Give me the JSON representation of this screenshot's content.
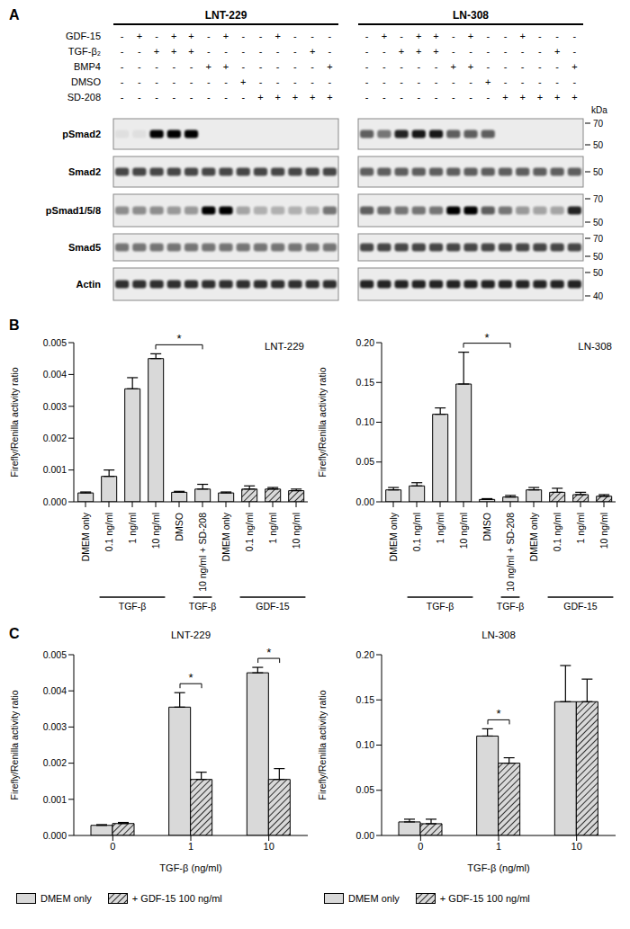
{
  "blot": {
    "panel": "A",
    "kda_label": "kDa",
    "treatments": [
      {
        "name": "GDF-15",
        "lanes": [
          "-",
          "+",
          "-",
          "+",
          "+",
          "-",
          "+",
          "-",
          "-",
          "+",
          "-",
          "-",
          "-"
        ]
      },
      {
        "name": "TGF-β₂",
        "lanes": [
          "-",
          "-",
          "+",
          "+",
          "+",
          "-",
          "-",
          "-",
          "-",
          "-",
          "-",
          "+",
          "-"
        ]
      },
      {
        "name": "BMP4",
        "lanes": [
          "-",
          "-",
          "-",
          "-",
          "-",
          "+",
          "+",
          "-",
          "-",
          "-",
          "-",
          "-",
          "+"
        ]
      },
      {
        "name": "DMSO",
        "lanes": [
          "-",
          "-",
          "-",
          "-",
          "-",
          "-",
          "-",
          "+",
          "-",
          "-",
          "-",
          "-",
          "-"
        ]
      },
      {
        "name": "SD-208",
        "lanes": [
          "-",
          "-",
          "-",
          "-",
          "-",
          "-",
          "-",
          "-",
          "+",
          "+",
          "+",
          "+",
          "+"
        ]
      }
    ],
    "proteins": [
      {
        "name": "pSmad2",
        "kda": [
          70,
          50
        ]
      },
      {
        "name": "Smad2",
        "kda": [
          50
        ]
      },
      {
        "name": "pSmad1/5/8",
        "kda": [
          70,
          50
        ]
      },
      {
        "name": "Smad5",
        "kda": [
          70,
          50
        ]
      },
      {
        "name": "Actin",
        "kda": [
          50,
          40
        ]
      }
    ],
    "cell_lines": [
      {
        "name": "LNT-229",
        "bands": [
          [
            0.05,
            0.05,
            1,
            1,
            1,
            0,
            0,
            0,
            0,
            0,
            0,
            0,
            0
          ],
          [
            0.7,
            0.7,
            0.7,
            0.7,
            0.7,
            0.7,
            0.7,
            0.7,
            0.7,
            0.7,
            0.7,
            0.7,
            0.7
          ],
          [
            0.4,
            0.4,
            0.4,
            0.35,
            0.35,
            1,
            1,
            0.3,
            0.25,
            0.25,
            0.25,
            0.25,
            0.5
          ],
          [
            0.5,
            0.5,
            0.5,
            0.5,
            0.5,
            0.5,
            0.5,
            0.5,
            0.5,
            0.5,
            0.5,
            0.5,
            0.5
          ],
          [
            0.8,
            0.8,
            0.8,
            0.8,
            0.8,
            0.8,
            0.8,
            0.8,
            0.8,
            0.8,
            0.8,
            0.8,
            0.8
          ]
        ]
      },
      {
        "name": "LN-308",
        "bands": [
          [
            0.6,
            0.5,
            0.85,
            0.9,
            0.9,
            0.6,
            0.6,
            0.6,
            0,
            0,
            0,
            0,
            0
          ],
          [
            0.6,
            0.6,
            0.6,
            0.6,
            0.6,
            0.6,
            0.6,
            0.6,
            0.6,
            0.6,
            0.6,
            0.6,
            0.6
          ],
          [
            0.6,
            0.55,
            0.5,
            0.5,
            0.5,
            1,
            1,
            0.6,
            0.5,
            0.35,
            0.3,
            0.3,
            0.85
          ],
          [
            0.7,
            0.7,
            0.7,
            0.7,
            0.7,
            0.7,
            0.7,
            0.7,
            0.7,
            0.7,
            0.7,
            0.7,
            0.7
          ],
          [
            0.85,
            0.85,
            0.85,
            0.85,
            0.85,
            0.85,
            0.85,
            0.85,
            0.85,
            0.85,
            0.85,
            0.85,
            0.85
          ]
        ]
      }
    ]
  },
  "chart_data": [
    {
      "panel": "B",
      "type": "bar",
      "title": "LNT-229",
      "y_label": "Firefly/Renilla activity ratio",
      "categories": [
        "DMEM only",
        "0.1 ng/ml",
        "1 ng/ml",
        "10 ng/ml",
        "DMSO",
        "10 ng/ml + SD-208",
        "DMEM only",
        "0.1 ng/ml",
        "1 ng/ml",
        "10 ng/ml"
      ],
      "values": [
        0.00028,
        0.0008,
        0.00355,
        0.0045,
        0.0003,
        0.0004,
        0.00028,
        0.0004,
        0.0004,
        0.00035
      ],
      "errors": [
        3e-05,
        0.0002,
        0.00035,
        0.00015,
        3e-05,
        0.00015,
        3e-05,
        0.0001,
        5e-05,
        5e-05
      ],
      "color": "#d9d9d9",
      "groups": [
        {
          "label": "TGF-β",
          "from": 1,
          "to": 3,
          "line_style": "solid"
        },
        {
          "label": "TGF-β",
          "from": 5,
          "to": 5,
          "line_style": "solid"
        },
        {
          "label": "GDF-15",
          "from": 7,
          "to": 9,
          "line_style": "hatched"
        }
      ],
      "significance": [
        {
          "from": 3,
          "to": 5,
          "label": "*"
        }
      ],
      "ylim": [
        0,
        0.005
      ],
      "yticks": [
        {
          "value": 0,
          "label": "0.000"
        },
        0.001,
        0.002,
        0.003,
        0.004,
        0.005
      ]
    },
    {
      "type": "bar",
      "title": "LN-308",
      "y_label": "Firefly/Renilla activity ratio",
      "categories": [
        "DMEM only",
        "0.1 ng/ml",
        "1 ng/ml",
        "10 ng/ml",
        "DMSO",
        "10 ng/ml + SD-208",
        "DMEM only",
        "0.1 ng/ml",
        "1 ng/ml",
        "10 ng/ml"
      ],
      "values": [
        0.015,
        0.02,
        0.11,
        0.148,
        0.003,
        0.006,
        0.015,
        0.012,
        0.009,
        0.007
      ],
      "errors": [
        0.003,
        0.004,
        0.008,
        0.04,
        0.001,
        0.002,
        0.003,
        0.005,
        0.003,
        0.002
      ],
      "color": "#d9d9d9",
      "groups": [
        {
          "label": "TGF-β",
          "from": 1,
          "to": 3,
          "line_style": "solid"
        },
        {
          "label": "TGF-β",
          "from": 5,
          "to": 5,
          "line_style": "solid"
        },
        {
          "label": "GDF-15",
          "from": 7,
          "to": 9,
          "line_style": "hatched"
        }
      ],
      "significance": [
        {
          "from": 3,
          "to": 5,
          "label": "*"
        }
      ],
      "ylim": [
        0,
        0.2
      ],
      "yticks": [
        {
          "value": 0,
          "label": "0.00"
        },
        0.05,
        {
          "value": 0.1,
          "label": "0.10"
        },
        0.15,
        {
          "value": 0.2,
          "label": "0.20"
        }
      ]
    },
    {
      "panel": "C",
      "type": "bar",
      "title": "LNT-229",
      "y_label": "Firefly/Renilla activity ratio",
      "x_label": "TGF-β  (ng/ml)",
      "categories": [
        "0",
        "1",
        "10"
      ],
      "legend": "bottom",
      "series": [
        {
          "name": "DMEM only",
          "color": "#d9d9d9",
          "line_style": "solid",
          "values": [
            0.00028,
            0.00355,
            0.0045
          ],
          "errors": [
            2e-05,
            0.0004,
            0.00015
          ]
        },
        {
          "name": "+ GDF-15 100 ng/ml",
          "color": "#d9d9d9",
          "line_style": "hatched",
          "values": [
            0.00033,
            0.00155,
            0.00155
          ],
          "errors": [
            3e-05,
            0.0002,
            0.0003
          ]
        }
      ],
      "significance": [
        {
          "category": 1,
          "label": "*"
        },
        {
          "category": 2,
          "label": "*"
        }
      ],
      "ylim": [
        0,
        0.005
      ],
      "yticks": [
        {
          "value": 0,
          "label": "0.000"
        },
        0.001,
        0.002,
        0.003,
        0.004,
        0.005
      ]
    },
    {
      "type": "bar",
      "title": "LN-308",
      "y_label": "Firefly/Renilla activity ratio",
      "x_label": "TGF-β  (ng/ml)",
      "categories": [
        "0",
        "1",
        "10"
      ],
      "legend": "bottom",
      "series": [
        {
          "name": "DMEM only",
          "color": "#d9d9d9",
          "line_style": "solid",
          "values": [
            0.015,
            0.11,
            0.148
          ],
          "errors": [
            0.003,
            0.008,
            0.04
          ]
        },
        {
          "name": "+ GDF-15 100 ng/ml",
          "color": "#d9d9d9",
          "line_style": "hatched",
          "values": [
            0.013,
            0.08,
            0.148
          ],
          "errors": [
            0.005,
            0.006,
            0.025
          ]
        }
      ],
      "significance": [
        {
          "category": 1,
          "label": "*"
        }
      ],
      "ylim": [
        0,
        0.2
      ],
      "yticks": [
        {
          "value": 0,
          "label": "0.00"
        },
        0.05,
        {
          "value": 0.1,
          "label": "0.10"
        },
        0.15,
        {
          "value": 0.2,
          "label": "0.20"
        }
      ]
    }
  ]
}
